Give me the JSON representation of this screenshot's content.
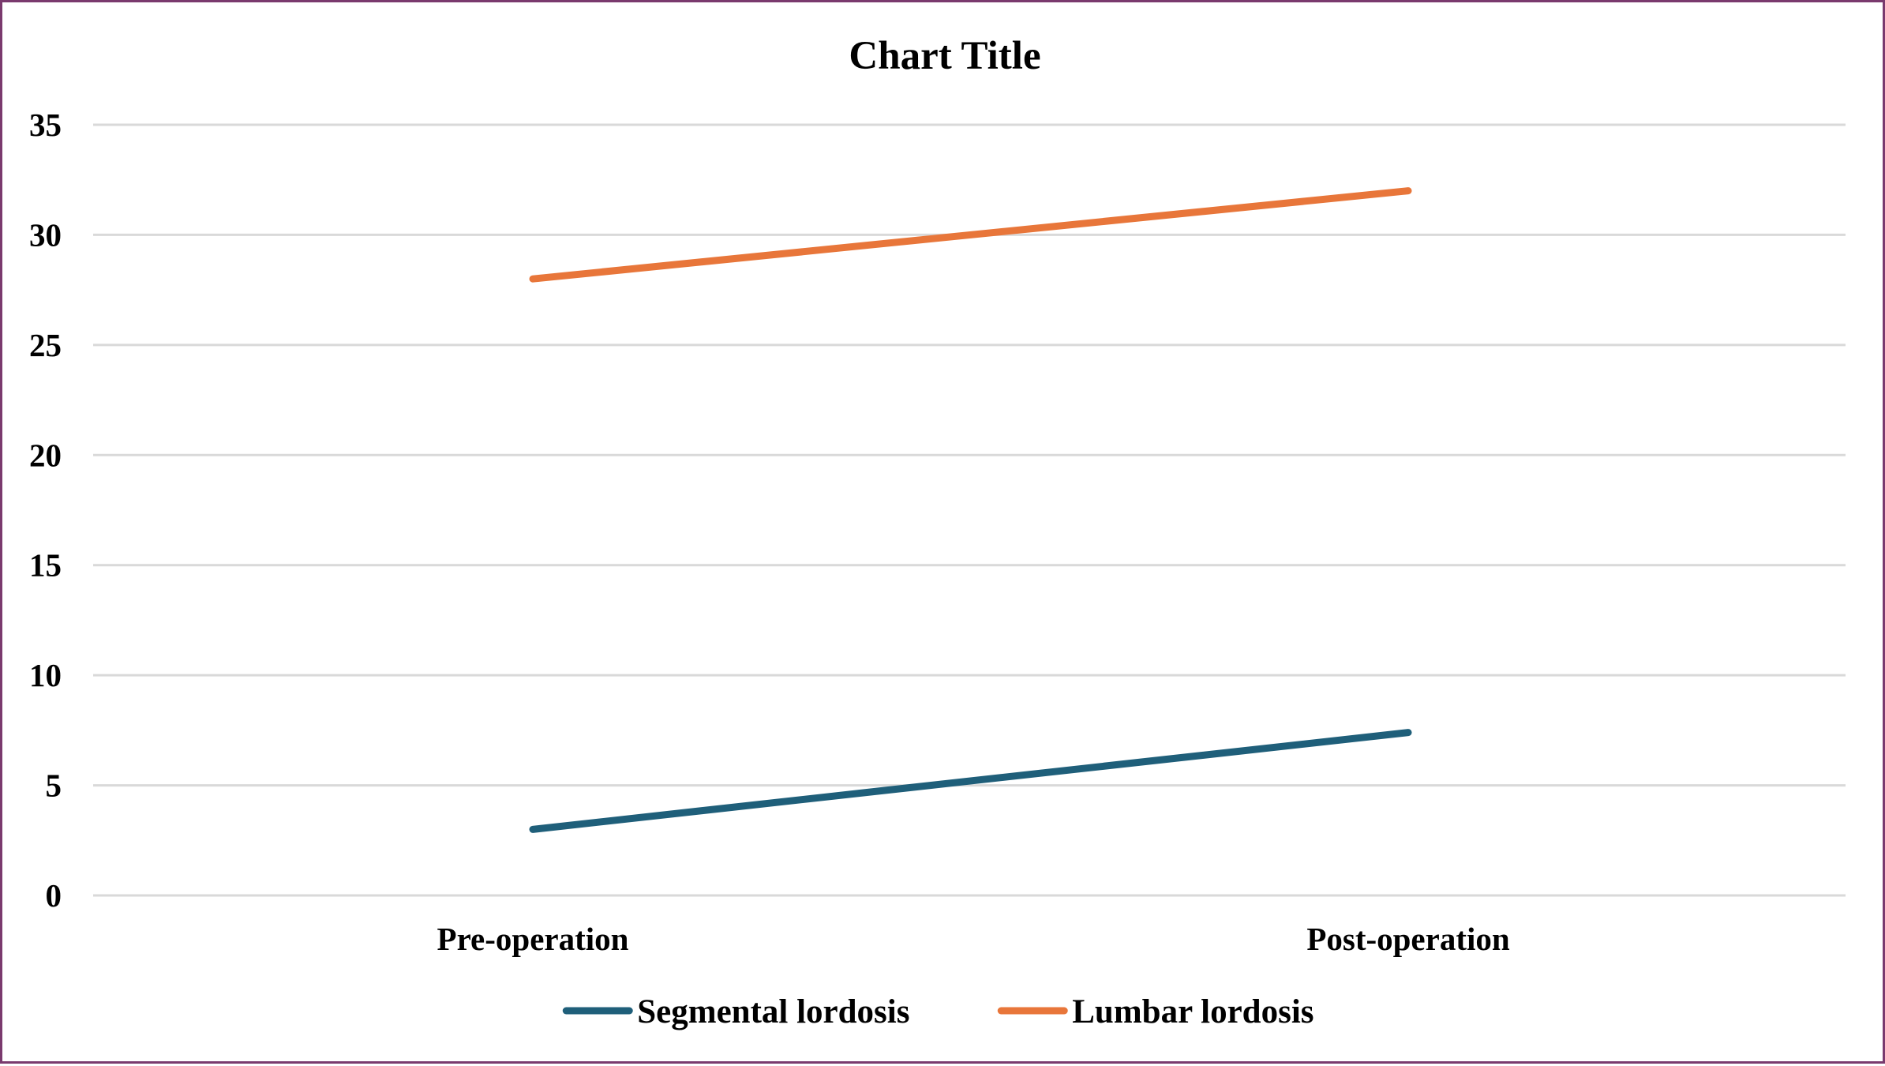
{
  "chart_data": {
    "type": "line",
    "title": "Chart Title",
    "xlabel": "",
    "ylabel": "",
    "categories": [
      "Pre-operation",
      "Post-operation"
    ],
    "series": [
      {
        "name": "Segmental lordosis",
        "values": [
          3.0,
          7.4
        ],
        "color": "#1f5f7a"
      },
      {
        "name": "Lumbar lordosis",
        "values": [
          28.0,
          32.0
        ],
        "color": "#e8763a"
      }
    ],
    "ylim": [
      0,
      35
    ],
    "yticks": [
      0,
      5,
      10,
      15,
      20,
      25,
      30,
      35
    ],
    "grid": true,
    "legend_position": "bottom",
    "colors": {
      "frame_border": "#7a3a6e",
      "gridline": "#d9d9d9",
      "text": "#000000"
    }
  }
}
